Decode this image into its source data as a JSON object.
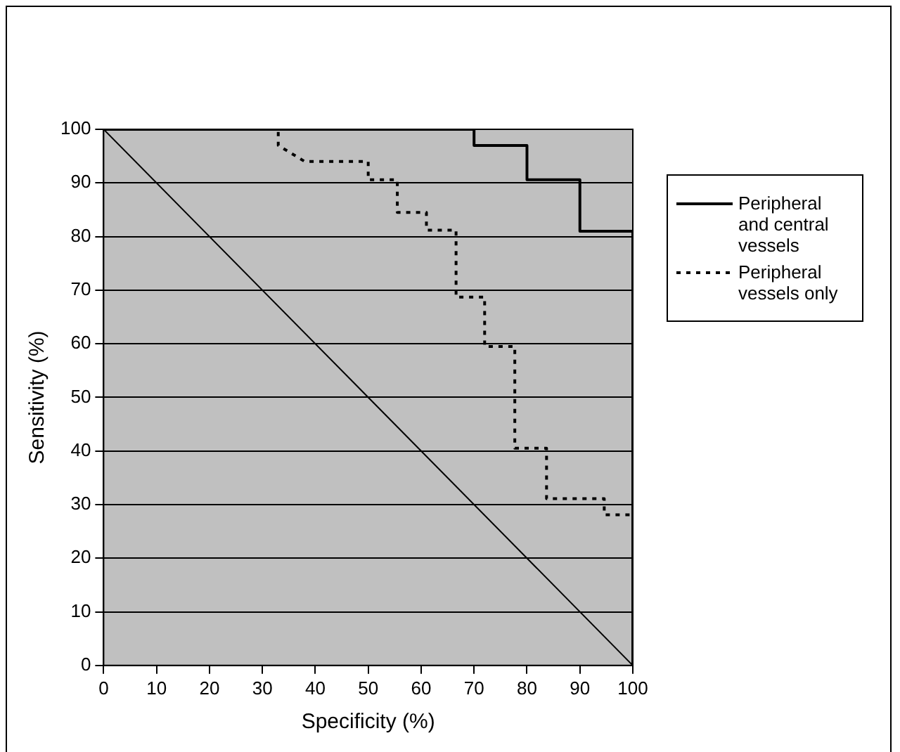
{
  "chart_data": {
    "type": "line",
    "xlabel": "Specificity (%)",
    "ylabel": "Sensitivity (%)",
    "xlim": [
      0,
      100
    ],
    "ylim": [
      0,
      100
    ],
    "xticks": [
      0,
      10,
      20,
      30,
      40,
      50,
      60,
      70,
      80,
      90,
      100
    ],
    "yticks": [
      0,
      10,
      20,
      30,
      40,
      50,
      60,
      70,
      80,
      90,
      100
    ],
    "grid": "y",
    "legend": "top right",
    "marker": "none",
    "series": [
      {
        "name": "Peripheral and central vessels",
        "color": "#000000",
        "line_style": "solid",
        "x": [
          0,
          70,
          70,
          80,
          80,
          90,
          90,
          100,
          100
        ],
        "values": [
          100,
          100,
          97,
          97,
          90.6,
          90.6,
          81,
          81,
          0
        ]
      },
      {
        "name": "Peripheral vessels only",
        "color": "#000000",
        "line_style": "dotted",
        "x": [
          0,
          33,
          33,
          38,
          50,
          50,
          55.5,
          55.5,
          61,
          61,
          66.6,
          66.6,
          72,
          72,
          77.7,
          77.7,
          83.7,
          83.7,
          94.6,
          94.6,
          100,
          100
        ],
        "values": [
          100,
          100,
          97,
          94,
          94,
          90.6,
          90.6,
          84.5,
          84.5,
          81.2,
          81.2,
          68.7,
          68.7,
          59.5,
          59.5,
          40.5,
          40.5,
          31.1,
          31.1,
          28.1,
          28.1,
          0
        ]
      },
      {
        "color": "#000000",
        "line_style": "solid",
        "x": [
          0,
          100
        ],
        "values": [
          100,
          0
        ]
      }
    ]
  }
}
